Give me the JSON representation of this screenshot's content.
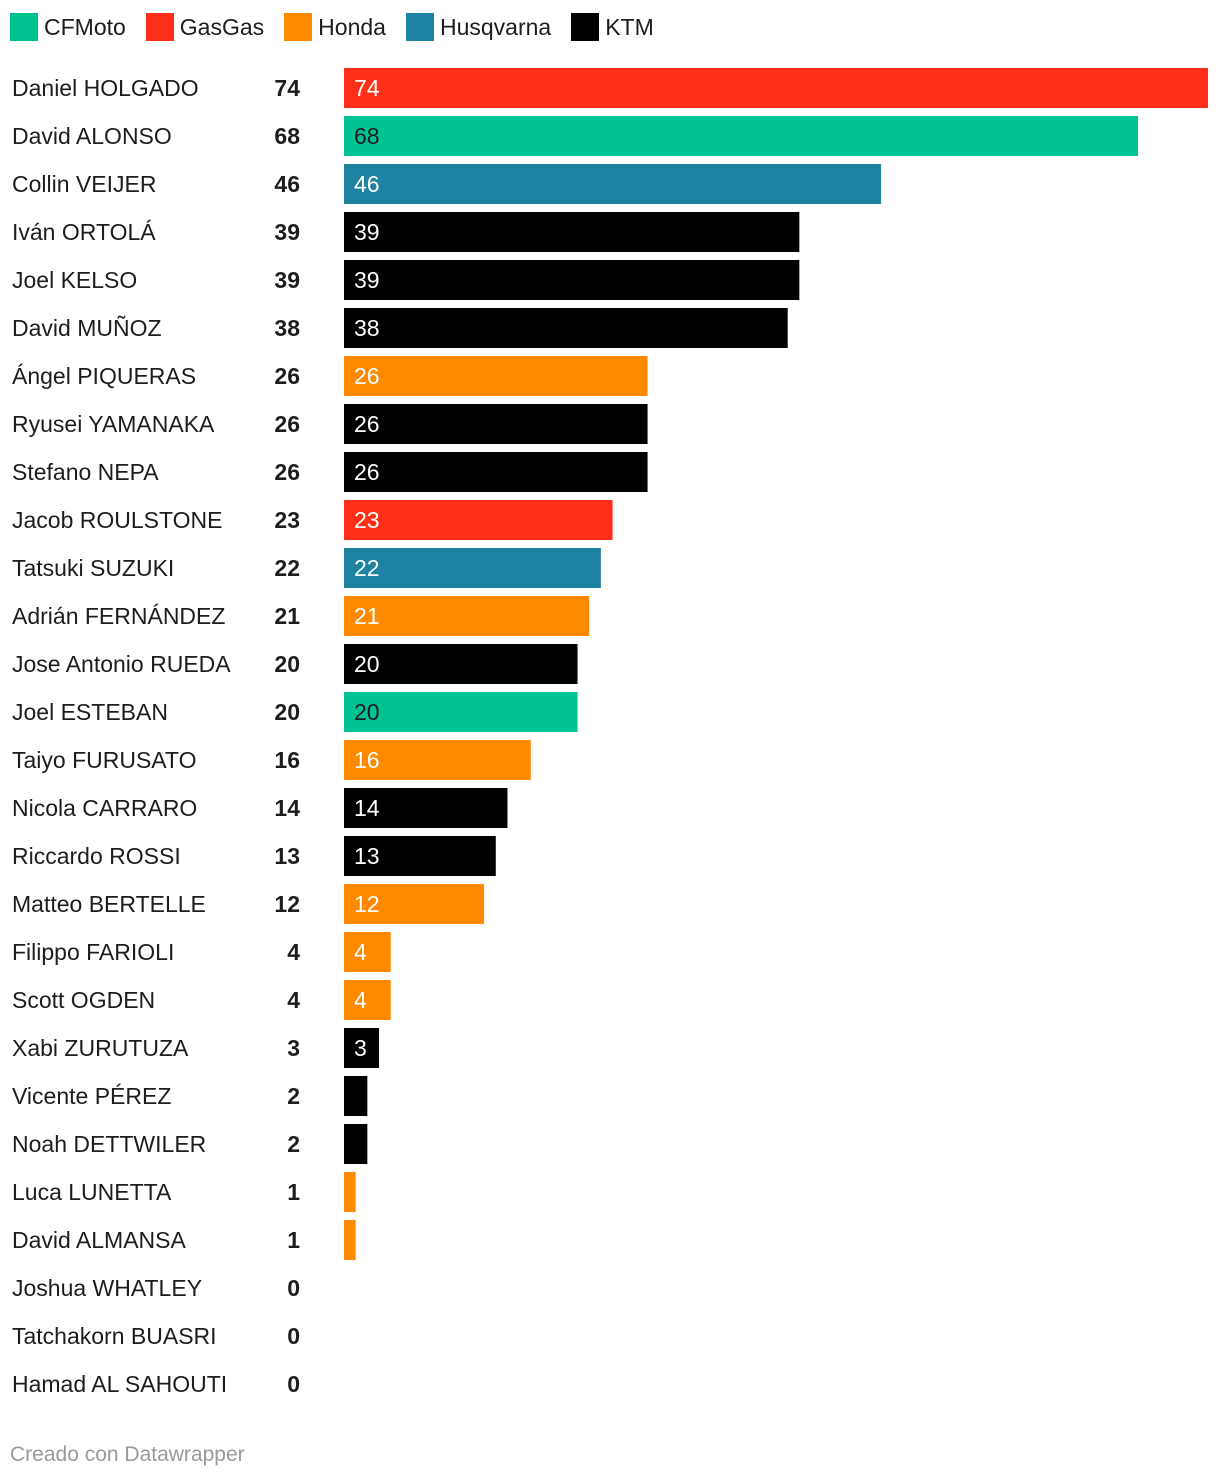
{
  "legend": [
    {
      "label": "CFMoto",
      "color": "#00c392"
    },
    {
      "label": "GasGas",
      "color": "#ff2e17"
    },
    {
      "label": "Honda",
      "color": "#ff8a00"
    },
    {
      "label": "Husqvarna",
      "color": "#1e82a3"
    },
    {
      "label": "KTM",
      "color": "#000000"
    }
  ],
  "chart_data": {
    "type": "bar",
    "orientation": "horizontal",
    "xlim": [
      0,
      74
    ],
    "grid": false,
    "legend_position": "top-left",
    "rows": [
      {
        "name": "Daniel HOLGADO",
        "value": 74,
        "team": "GasGas",
        "bar_label": "74"
      },
      {
        "name": "David ALONSO",
        "value": 68,
        "team": "CFMoto",
        "bar_label": "68"
      },
      {
        "name": "Collin VEIJER",
        "value": 46,
        "team": "Husqvarna",
        "bar_label": "46"
      },
      {
        "name": "Iván ORTOLÁ",
        "value": 39,
        "team": "KTM",
        "bar_label": "39"
      },
      {
        "name": "Joel KELSO",
        "value": 39,
        "team": "KTM",
        "bar_label": "39"
      },
      {
        "name": "David MUÑOZ",
        "value": 38,
        "team": "KTM",
        "bar_label": "38"
      },
      {
        "name": "Ángel PIQUERAS",
        "value": 26,
        "team": "Honda",
        "bar_label": "26"
      },
      {
        "name": "Ryusei YAMANAKA",
        "value": 26,
        "team": "KTM",
        "bar_label": "26"
      },
      {
        "name": "Stefano NEPA",
        "value": 26,
        "team": "KTM",
        "bar_label": "26"
      },
      {
        "name": "Jacob ROULSTONE",
        "value": 23,
        "team": "GasGas",
        "bar_label": "23"
      },
      {
        "name": "Tatsuki SUZUKI",
        "value": 22,
        "team": "Husqvarna",
        "bar_label": "22"
      },
      {
        "name": "Adrián FERNÁNDEZ",
        "value": 21,
        "team": "Honda",
        "bar_label": "21"
      },
      {
        "name": "Jose Antonio RUEDA",
        "value": 20,
        "team": "KTM",
        "bar_label": "20"
      },
      {
        "name": "Joel ESTEBAN",
        "value": 20,
        "team": "CFMoto",
        "bar_label": "20"
      },
      {
        "name": "Taiyo FURUSATO",
        "value": 16,
        "team": "Honda",
        "bar_label": "16"
      },
      {
        "name": "Nicola CARRARO",
        "value": 14,
        "team": "KTM",
        "bar_label": "14"
      },
      {
        "name": "Riccardo ROSSI",
        "value": 13,
        "team": "KTM",
        "bar_label": "13"
      },
      {
        "name": "Matteo BERTELLE",
        "value": 12,
        "team": "Honda",
        "bar_label": "12"
      },
      {
        "name": "Filippo FARIOLI",
        "value": 4,
        "team": "Honda",
        "bar_label": "4"
      },
      {
        "name": "Scott OGDEN",
        "value": 4,
        "team": "Honda",
        "bar_label": "4"
      },
      {
        "name": "Xabi ZURUTUZA",
        "value": 3,
        "team": "KTM",
        "bar_label": "3"
      },
      {
        "name": "Vicente PÉREZ",
        "value": 2,
        "team": "KTM",
        "bar_label": ""
      },
      {
        "name": "Noah DETTWILER",
        "value": 2,
        "team": "KTM",
        "bar_label": ""
      },
      {
        "name": "Luca LUNETTA",
        "value": 1,
        "team": "Honda",
        "bar_label": ""
      },
      {
        "name": "David ALMANSA",
        "value": 1,
        "team": "Honda",
        "bar_label": ""
      },
      {
        "name": "Joshua WHATLEY",
        "value": 0,
        "team": "",
        "bar_label": ""
      },
      {
        "name": "Tatchakorn BUASRI",
        "value": 0,
        "team": "",
        "bar_label": ""
      },
      {
        "name": "Hamad AL SAHOUTI",
        "value": 0,
        "team": "",
        "bar_label": ""
      }
    ]
  },
  "credit": "Creado con Datawrapper"
}
